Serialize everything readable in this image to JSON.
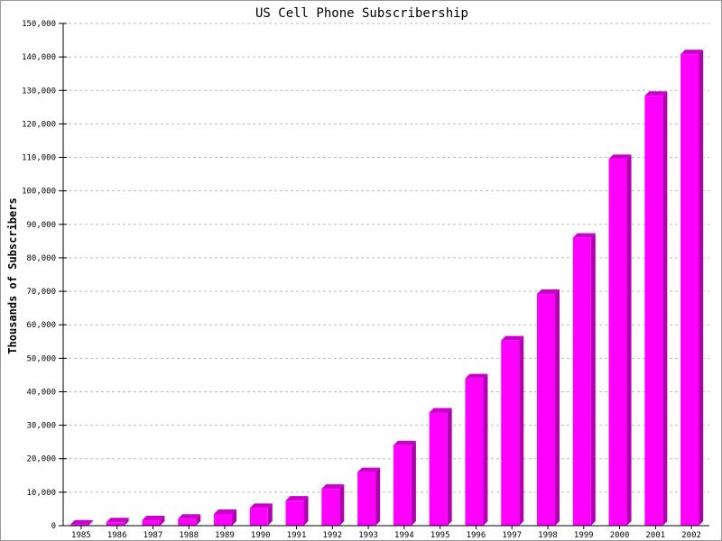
{
  "chart_data": {
    "type": "bar",
    "title": "US Cell Phone Subscribership",
    "xlabel": "",
    "ylabel": "Thousands of Subscribers",
    "ylim": [
      0,
      150000
    ],
    "ytick_step": 10000,
    "grid": true,
    "bar_style": "3d",
    "colors": {
      "front": "#ff00ff",
      "top": "#cc00cc",
      "side": "#b000b0",
      "grid": "#bbbbbb"
    },
    "categories": [
      "1985",
      "1986",
      "1987",
      "1988",
      "1989",
      "1990",
      "1991",
      "1992",
      "1993",
      "1994",
      "1995",
      "1996",
      "1997",
      "1998",
      "1999",
      "2000",
      "2001",
      "2002"
    ],
    "values": [
      340,
      1000,
      1600,
      2100,
      3500,
      5300,
      7500,
      11000,
      16000,
      24000,
      33800,
      44000,
      55300,
      69200,
      86000,
      109500,
      128400,
      140800
    ]
  }
}
